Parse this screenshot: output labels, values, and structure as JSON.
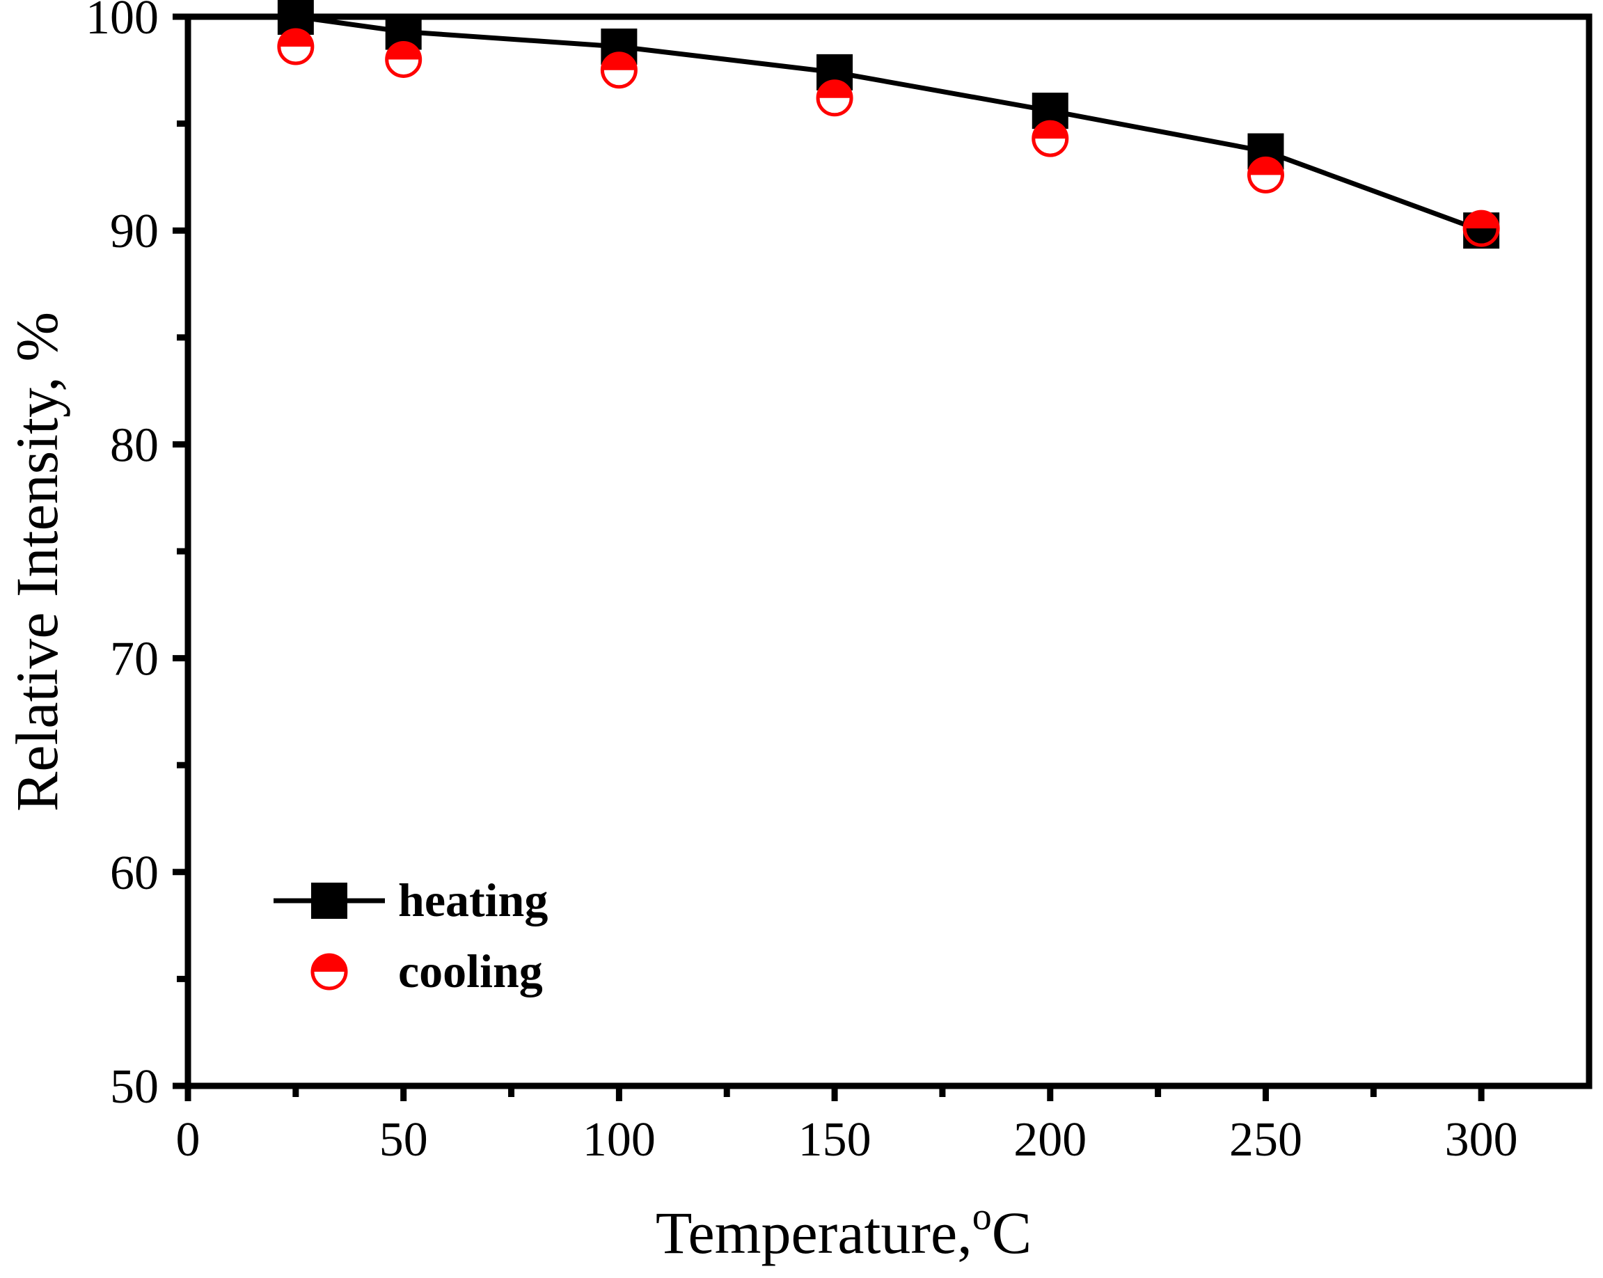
{
  "chart_data": {
    "type": "line",
    "title": "",
    "xlabel": "Temperature,",
    "xlabel_superscript": "o",
    "xlabel_unit": "C",
    "ylabel": "Relative Intensity, %",
    "xlim": [
      0,
      325
    ],
    "ylim": [
      50,
      100
    ],
    "xticks": [
      0,
      50,
      100,
      150,
      200,
      250,
      300
    ],
    "xtick_labels": [
      "0",
      "50",
      "100",
      "150",
      "200",
      "250",
      "300"
    ],
    "yticks": [
      50,
      60,
      70,
      80,
      90,
      100
    ],
    "ytick_labels": [
      "50",
      "60",
      "70",
      "80",
      "90",
      "100"
    ],
    "x_minor_step": 25,
    "y_minor_step": 5,
    "x": [
      25,
      50,
      100,
      150,
      200,
      250,
      300
    ],
    "series": [
      {
        "name": "heating",
        "marker": "square",
        "line": true,
        "color": "#000000",
        "values": [
          100.0,
          99.3,
          98.6,
          97.4,
          95.6,
          93.7,
          90.0
        ]
      },
      {
        "name": "cooling",
        "marker": "half-filled-circle",
        "line": false,
        "color": "#ff0000",
        "values": [
          98.6,
          98.0,
          97.5,
          96.2,
          94.3,
          92.6,
          90.1
        ]
      }
    ],
    "legend_position": "bottom-left",
    "grid": false
  }
}
